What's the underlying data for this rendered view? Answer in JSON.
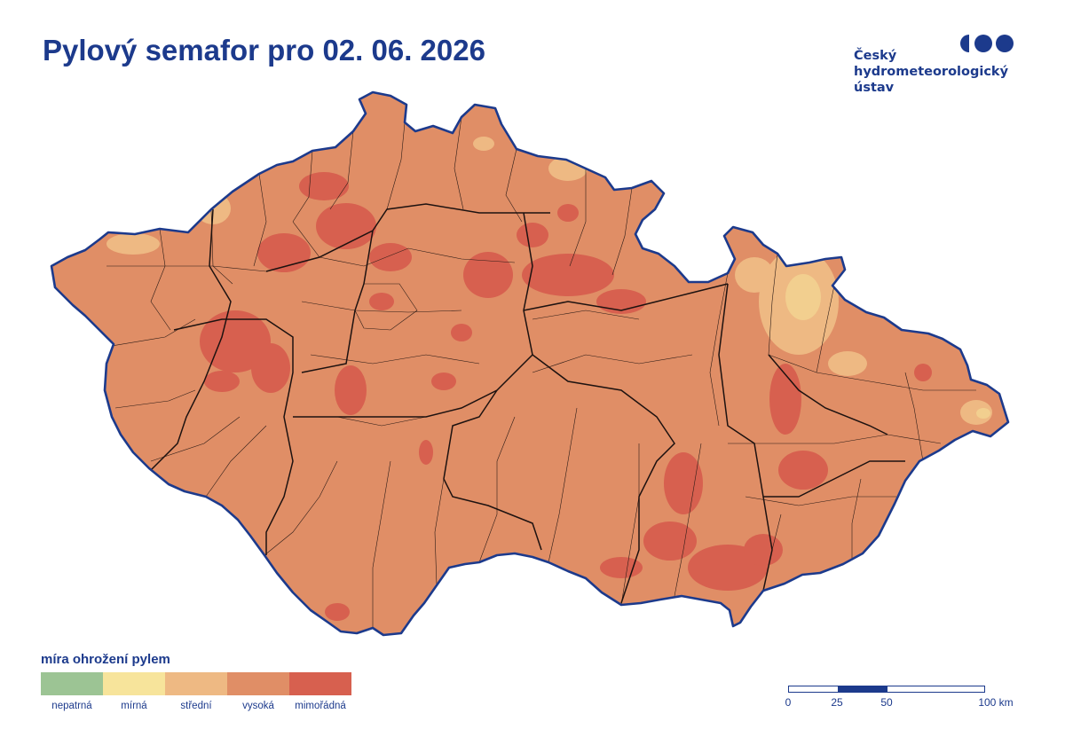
{
  "header": {
    "title": "Pylový semafor pro 02. 06. 2026"
  },
  "logo": {
    "lines": [
      "Český",
      "hydrometeorologický",
      "ústav"
    ],
    "icon": "chmi-dots-logo",
    "color": "#1c3a8c"
  },
  "map": {
    "region": "Czech Republic",
    "dominant_level": "vysoká",
    "border_color": "#1c3a8c",
    "hotspot_level": "mimořádná",
    "low_spot_level": "střední"
  },
  "legend": {
    "title": "míra ohrožení pylem",
    "items": [
      {
        "label": "nepatrná",
        "color": "#9cc494"
      },
      {
        "label": "mírná",
        "color": "#f7e49b"
      },
      {
        "label": "střední",
        "color": "#eeb983"
      },
      {
        "label": "vysoká",
        "color": "#e08e66"
      },
      {
        "label": "mimořádná",
        "color": "#d7604f"
      }
    ]
  },
  "scale_bar": {
    "labels": [
      "0",
      "25",
      "50",
      "100 km"
    ],
    "ticks_km": [
      0,
      25,
      50,
      100
    ]
  }
}
